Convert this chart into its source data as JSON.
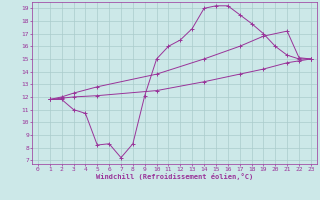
{
  "xlabel": "Windchill (Refroidissement éolien,°C)",
  "bg_color": "#cce8e8",
  "grid_color": "#aacccc",
  "line_color": "#993399",
  "spine_color": "#993399",
  "xlim": [
    -0.5,
    23.5
  ],
  "ylim": [
    6.7,
    19.5
  ],
  "xticks": [
    0,
    1,
    2,
    3,
    4,
    5,
    6,
    7,
    8,
    9,
    10,
    11,
    12,
    13,
    14,
    15,
    16,
    17,
    18,
    19,
    20,
    21,
    22,
    23
  ],
  "yticks": [
    7,
    8,
    9,
    10,
    11,
    12,
    13,
    14,
    15,
    16,
    17,
    18,
    19
  ],
  "line1_x": [
    1,
    2,
    3,
    4,
    5,
    6,
    7,
    8,
    9,
    10,
    11,
    12,
    13,
    14,
    15,
    16,
    17,
    18,
    19,
    20,
    21,
    22,
    23
  ],
  "line1_y": [
    11.8,
    11.8,
    11.0,
    10.7,
    8.2,
    8.3,
    7.2,
    8.3,
    12.1,
    15.0,
    16.0,
    16.5,
    17.4,
    19.0,
    19.2,
    19.2,
    18.5,
    17.8,
    17.0,
    16.0,
    15.3,
    15.0,
    15.0
  ],
  "line2_x": [
    1,
    2,
    3,
    5,
    10,
    14,
    17,
    19,
    21,
    22,
    23
  ],
  "line2_y": [
    11.8,
    11.9,
    12.0,
    12.1,
    12.5,
    13.2,
    13.8,
    14.2,
    14.7,
    14.85,
    15.0
  ],
  "line3_x": [
    1,
    2,
    3,
    5,
    10,
    14,
    17,
    19,
    21,
    22,
    23
  ],
  "line3_y": [
    11.8,
    12.0,
    12.3,
    12.8,
    13.8,
    15.0,
    16.0,
    16.8,
    17.2,
    15.1,
    15.0
  ]
}
